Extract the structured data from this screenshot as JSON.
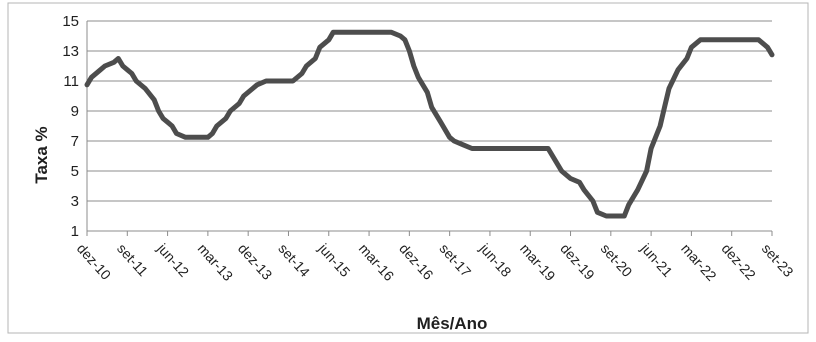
{
  "chart_data": {
    "type": "line",
    "title": "",
    "xlabel": "Mês/Ano",
    "ylabel": "Taxa %",
    "ylim": [
      1,
      15
    ],
    "yticks": [
      1,
      3,
      5,
      7,
      9,
      11,
      13,
      15
    ],
    "grid": "horizontal",
    "legend": "none",
    "line_color": "#4d4d4d",
    "x_tick_labels": [
      "dez-10",
      "set-11",
      "jun-12",
      "mar-13",
      "dez-13",
      "set-14",
      "jun-15",
      "mar-16",
      "dez-16",
      "set-17",
      "jun-18",
      "mar-19",
      "dez-19",
      "set-20",
      "jun-21",
      "mar-22",
      "dez-22",
      "set-23"
    ],
    "series": [
      {
        "x": [
          "dez-10",
          "jan-11",
          "mar-11",
          "abr-11",
          "jun-11",
          "jul-11",
          "ago-11",
          "out-11",
          "nov-11",
          "jan-12",
          "mar-12",
          "abr-12",
          "mai-12",
          "jun-12",
          "jul-12",
          "ago-12",
          "out-12",
          "dez-12",
          "mar-13",
          "abr-13",
          "mai-13",
          "jul-13",
          "ago-13",
          "out-13",
          "nov-13",
          "jan-14",
          "fev-14",
          "abr-14",
          "mai-14",
          "out-14",
          "dez-14",
          "jan-15",
          "mar-15",
          "abr-15",
          "jun-15",
          "jul-15",
          "set-15",
          "dez-15",
          "jun-16",
          "ago-16",
          "out-16",
          "nov-16",
          "dez-16",
          "jan-17",
          "fev-17",
          "abr-17",
          "mai-17",
          "jul-17",
          "set-17",
          "out-17",
          "dez-17",
          "fev-18",
          "mar-18",
          "ago-18",
          "dez-18",
          "jul-19",
          "ago-19",
          "set-19",
          "out-19",
          "dez-19",
          "fev-20",
          "mar-20",
          "mai-20",
          "jun-20",
          "ago-20",
          "set-20",
          "dez-20",
          "jan-21",
          "mar-21",
          "mai-21",
          "jun-21",
          "ago-21",
          "set-21",
          "out-21",
          "dez-21",
          "fev-22",
          "mar-22",
          "mai-22",
          "jun-22",
          "ago-22",
          "set-22",
          "dez-22",
          "jun-23",
          "ago-23",
          "set-23"
        ],
        "y": [
          10.75,
          11.25,
          11.75,
          12.0,
          12.25,
          12.5,
          12.0,
          11.5,
          11.0,
          10.5,
          9.75,
          9.0,
          8.5,
          8.25,
          8.0,
          7.5,
          7.25,
          7.25,
          7.25,
          7.5,
          8.0,
          8.5,
          9.0,
          9.5,
          10.0,
          10.5,
          10.75,
          11.0,
          11.0,
          11.0,
          11.5,
          12.0,
          12.5,
          13.25,
          13.75,
          14.25,
          14.25,
          14.25,
          14.25,
          14.25,
          14.0,
          13.75,
          13.0,
          12.0,
          11.25,
          10.25,
          9.25,
          8.25,
          7.25,
          7.0,
          6.75,
          6.5,
          6.5,
          6.5,
          6.5,
          6.5,
          6.0,
          5.5,
          5.0,
          4.5,
          4.25,
          3.75,
          3.0,
          2.25,
          2.0,
          2.0,
          2.0,
          2.75,
          3.75,
          5.0,
          6.5,
          8.0,
          9.25,
          10.5,
          11.75,
          12.5,
          13.25,
          13.75,
          13.75,
          13.75,
          13.75,
          13.75,
          13.75,
          13.25,
          12.75
        ]
      }
    ]
  }
}
